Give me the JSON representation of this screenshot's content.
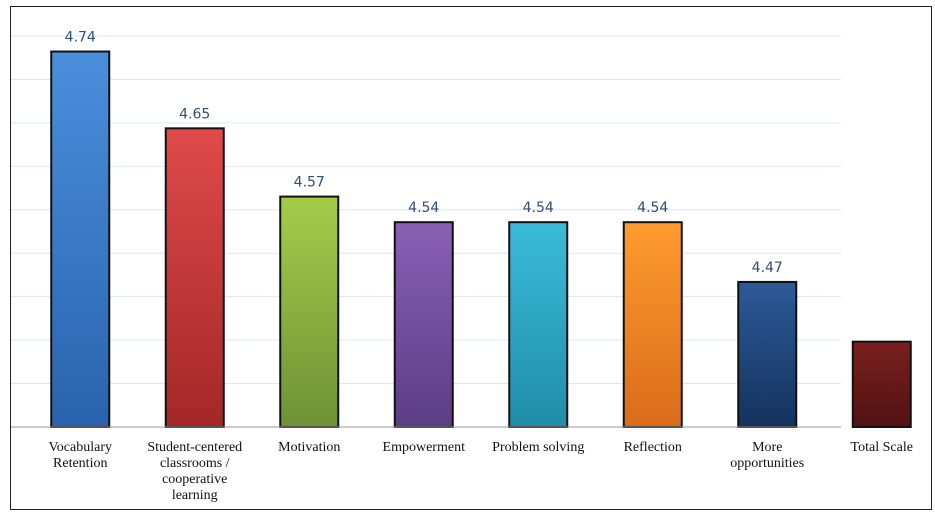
{
  "chart_data": {
    "type": "bar",
    "categories": [
      [
        "Vocabulary",
        "Retention"
      ],
      [
        "Student-centered",
        "classrooms /",
        "cooperative",
        "learning"
      ],
      [
        "Motivation"
      ],
      [
        "Empowerment"
      ],
      [
        "Problem solving"
      ],
      [
        "Reflection"
      ],
      [
        "More",
        "opportunities"
      ],
      [
        "Total Scale"
      ]
    ],
    "values": [
      4.74,
      4.65,
      4.57,
      4.54,
      4.54,
      4.54,
      4.47,
      4.4
    ],
    "data_labels": [
      "4.74",
      "4.65",
      "4.57",
      "4.54",
      "4.54",
      "4.54",
      "4.47",
      ""
    ],
    "ylim": [
      4.3,
      4.75
    ],
    "grid": true,
    "colors": [
      [
        "#4a8fdc",
        "#2a63ad"
      ],
      [
        "#e04a4a",
        "#a32727"
      ],
      [
        "#a6cc4a",
        "#6d9236"
      ],
      [
        "#8a60b5",
        "#5c3d85"
      ],
      [
        "#3bbbd8",
        "#1f8ea8"
      ],
      [
        "#ff9b2e",
        "#d96c1a"
      ],
      [
        "#2c5a98",
        "#15325c"
      ],
      [
        "#7a1f1f",
        "#521212"
      ]
    ],
    "title": "",
    "xlabel": "",
    "ylabel": ""
  }
}
